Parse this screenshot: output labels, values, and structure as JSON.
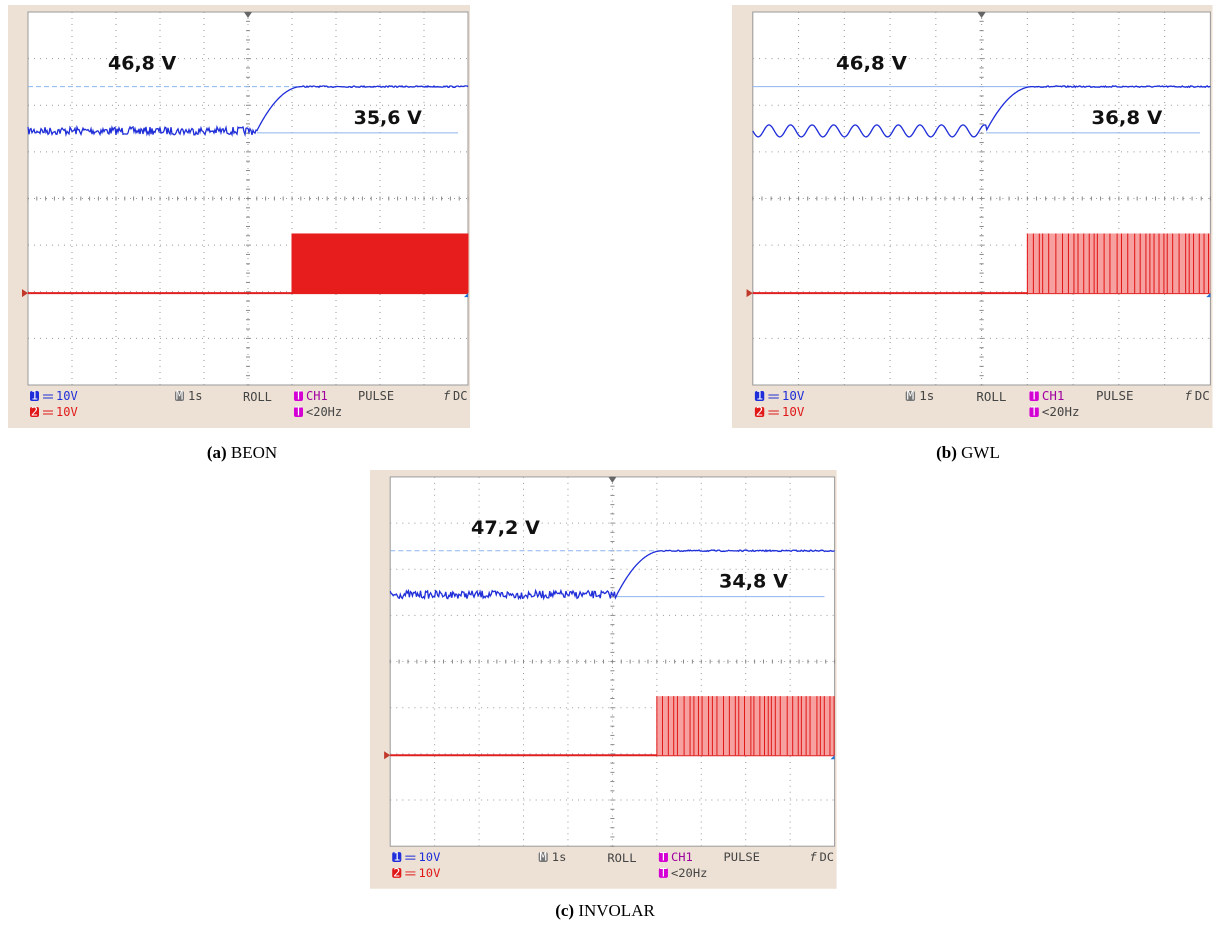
{
  "panels": [
    {
      "label": "(a)",
      "caption": "BEON",
      "high_annotation": "46,8 V",
      "low_annotation": "35,6 V",
      "footer": {
        "ch1_badge": "1",
        "ch1_scale": "10V",
        "ch2_badge": "2",
        "ch2_scale": "10V",
        "time_badge": "M",
        "timebase": "1s",
        "mode": "ROLL",
        "trigger_badge": "T",
        "trigger_source": "CH1",
        "trigger_type": "PULSE",
        "coupling": "DC",
        "cond_badge": "f",
        "trigger_condition": "<20Hz"
      }
    },
    {
      "label": "(b)",
      "caption": "GWL",
      "high_annotation": "46,8 V",
      "low_annotation": "36,8 V",
      "footer": {
        "ch1_badge": "1",
        "ch1_scale": "10V",
        "ch2_badge": "2",
        "ch2_scale": "10V",
        "time_badge": "M",
        "timebase": "1s",
        "mode": "ROLL",
        "trigger_badge": "T",
        "trigger_source": "CH1",
        "trigger_type": "PULSE",
        "coupling": "DC",
        "cond_badge": "f",
        "trigger_condition": "<20Hz"
      }
    },
    {
      "label": "(c)",
      "caption": "INVOLAR",
      "high_annotation": "47,2 V",
      "low_annotation": "34,8 V",
      "footer": {
        "ch1_badge": "1",
        "ch1_scale": "10V",
        "ch2_badge": "2",
        "ch2_scale": "10V",
        "time_badge": "M",
        "timebase": "1s",
        "mode": "ROLL",
        "trigger_badge": "T",
        "trigger_source": "CH1",
        "trigger_type": "PULSE",
        "coupling": "DC",
        "cond_badge": "f",
        "trigger_condition": "<20Hz"
      }
    }
  ]
}
